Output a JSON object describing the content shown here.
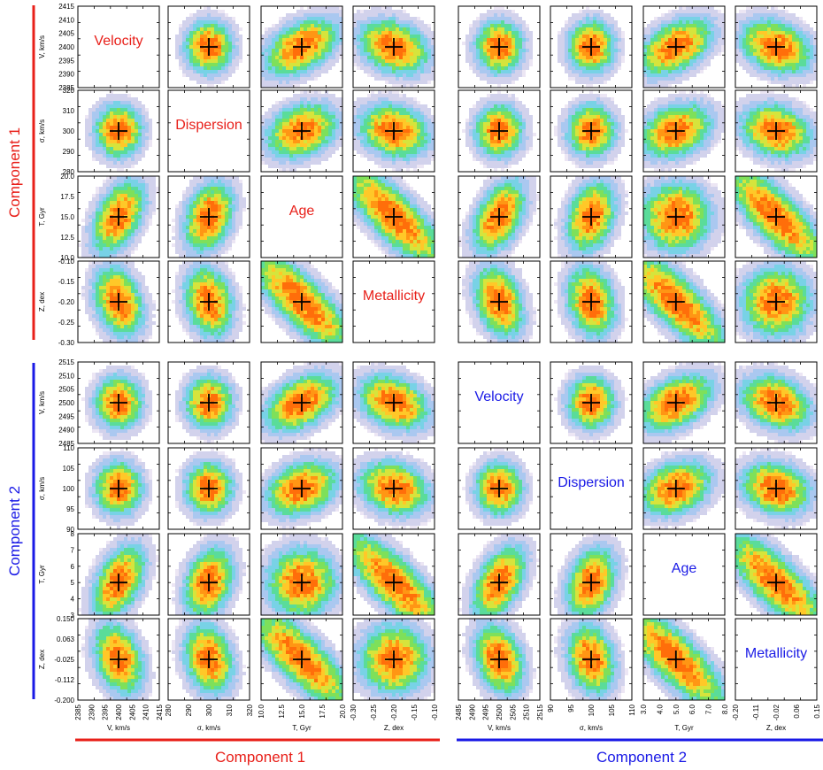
{
  "chart_data": {
    "type": "heatmap",
    "title": "",
    "description_note": "",
    "colors": {
      "component_1": "#e8201a",
      "component_2": "#1a1ae6",
      "density_scale": [
        "#ece6f4",
        "#d2d2ec",
        "#aac8f0",
        "#78d2e6",
        "#5adc9a",
        "#7ee05a",
        "#d6e43c",
        "#ffc828",
        "#ff9614",
        "#ff6e0a"
      ]
    },
    "row_groups": [
      {
        "name": "Component 1",
        "color": "#e8201a"
      },
      {
        "name": "Component 2",
        "color": "#1a1ae6"
      }
    ],
    "column_groups": [
      {
        "name": "Component 1",
        "color": "#e8201a"
      },
      {
        "name": "Component 2",
        "color": "#1a1ae6"
      }
    ],
    "parameters": [
      {
        "key": "V",
        "name": "Velocity",
        "axis_label": "V, km/s"
      },
      {
        "key": "sigma",
        "name": "Dispersion",
        "axis_label": "σ, km/s"
      },
      {
        "key": "T",
        "name": "Age",
        "axis_label": "T, Gyr"
      },
      {
        "key": "Z",
        "name": "Metallicity",
        "axis_label": "Z, dex"
      }
    ],
    "axes": {
      "c1": {
        "V": {
          "lim": [
            2385,
            2415
          ],
          "true_value": 2400,
          "ticks": [
            "2385",
            "2390",
            "2395",
            "2400",
            "2405",
            "2410",
            "2415"
          ]
        },
        "sigma": {
          "lim": [
            280,
            320
          ],
          "true_value": 300,
          "ticks": [
            "280",
            "290",
            "300",
            "310",
            "320"
          ]
        },
        "T": {
          "lim": [
            10.0,
            20.0
          ],
          "true_value": 15.0,
          "ticks": [
            "10.0",
            "12.5",
            "15.0",
            "17.5",
            "20.0"
          ]
        },
        "Z": {
          "lim": [
            -0.3,
            -0.1
          ],
          "true_value": -0.2,
          "ticks": [
            "-0.30",
            "-0.25",
            "-0.20",
            "-0.15",
            "-0.10"
          ]
        }
      },
      "c2": {
        "V": {
          "lim": [
            2485,
            2515
          ],
          "true_value": 2500,
          "ticks": [
            "2485",
            "2490",
            "2495",
            "2500",
            "2505",
            "2510",
            "2515"
          ]
        },
        "sigma": {
          "lim": [
            90,
            110
          ],
          "true_value": 100,
          "ticks": [
            "90",
            "95",
            "100",
            "105",
            "110"
          ]
        },
        "T": {
          "lim": [
            3,
            8
          ],
          "true_value": 5,
          "ticks_y": [
            "3",
            "4",
            "5",
            "6",
            "7",
            "8"
          ],
          "ticks_x": [
            "3.0",
            "4.0",
            "5.0",
            "6.0",
            "7.0",
            "8.0"
          ]
        },
        "Z": {
          "lim": [
            -0.2,
            0.15
          ],
          "true_value": -0.025,
          "ticks_y": [
            "-0.200",
            "-0.112",
            "-0.025",
            "0.063",
            "0.150"
          ],
          "ticks_x": [
            "-0.20",
            "-0.11",
            "-0.02",
            "0.06",
            "0.15"
          ]
        }
      }
    },
    "tilt_note": "",
    "pair_tilts": {
      "V|T": 0.25,
      "V|Z": -0.15,
      "sigma|T": 0.15,
      "sigma|Z": -0.1,
      "T|Z": -0.55
    },
    "markers": "+ at true parameter values"
  }
}
